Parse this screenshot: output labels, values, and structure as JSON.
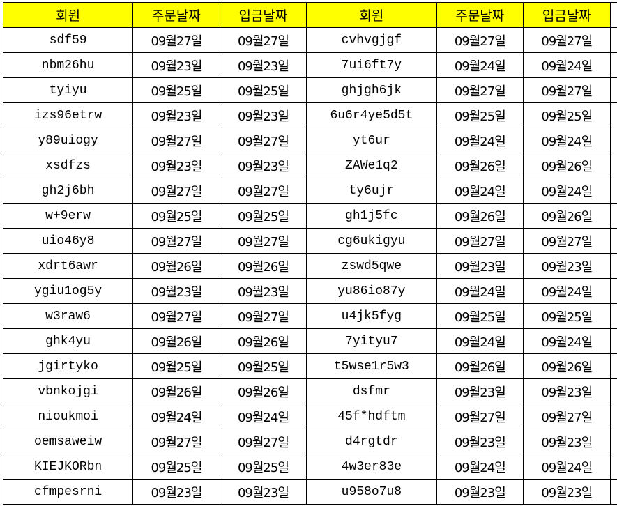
{
  "colors": {
    "header_bg": "#ffff00",
    "grid": "#000000"
  },
  "headers": [
    "회원",
    "주문날짜",
    "입금날짜",
    "회원",
    "주문날짜",
    "입금날짜"
  ],
  "rows": [
    [
      "sdf59",
      "09월27일",
      "09월27일",
      "cvhvgjgf",
      "09월27일",
      "09월27일"
    ],
    [
      "nbm26hu",
      "09월23일",
      "09월23일",
      "7ui6ft7y",
      "09월24일",
      "09월24일"
    ],
    [
      "tyiyu",
      "09월25일",
      "09월25일",
      "ghjgh6jk",
      "09월27일",
      "09월27일"
    ],
    [
      "izs96etrw",
      "09월23일",
      "09월23일",
      "6u6r4ye5d5t",
      "09월25일",
      "09월25일"
    ],
    [
      "y89uiogy",
      "09월27일",
      "09월27일",
      "yt6ur",
      "09월24일",
      "09월24일"
    ],
    [
      "xsdfzs",
      "09월23일",
      "09월23일",
      "ZAWe1q2",
      "09월26일",
      "09월26일"
    ],
    [
      "gh2j6bh",
      "09월27일",
      "09월27일",
      "ty6ujr",
      "09월24일",
      "09월24일"
    ],
    [
      "w+9erw",
      "09월25일",
      "09월25일",
      "gh1j5fc",
      "09월26일",
      "09월26일"
    ],
    [
      "uio46y8",
      "09월27일",
      "09월27일",
      "cg6ukigyu",
      "09월27일",
      "09월27일"
    ],
    [
      "xdrt6awr",
      "09월26일",
      "09월26일",
      "zswd5qwe",
      "09월23일",
      "09월23일"
    ],
    [
      "ygiu1og5y",
      "09월23일",
      "09월23일",
      "yu86io87y",
      "09월24일",
      "09월24일"
    ],
    [
      "w3raw6",
      "09월27일",
      "09월27일",
      "u4jk5fyg",
      "09월25일",
      "09월25일"
    ],
    [
      "ghk4yu",
      "09월26일",
      "09월26일",
      "7yityu7",
      "09월24일",
      "09월24일"
    ],
    [
      "jgirtyko",
      "09월25일",
      "09월25일",
      "t5wse1r5w3",
      "09월26일",
      "09월26일"
    ],
    [
      "vbnkojgi",
      "09월26일",
      "09월26일",
      "dsfmr",
      "09월23일",
      "09월23일"
    ],
    [
      "nioukmoi",
      "09월24일",
      "09월24일",
      "45f*hdftm",
      "09월27일",
      "09월27일"
    ],
    [
      "oemsaweiw",
      "09월27일",
      "09월27일",
      "d4rgtdr",
      "09월23일",
      "09월23일"
    ],
    [
      "KIEJKORbn",
      "09월25일",
      "09월25일",
      "4w3er83e",
      "09월24일",
      "09월24일"
    ],
    [
      "cfmpesrni",
      "09월23일",
      "09월23일",
      "u958o7u8",
      "09월23일",
      "09월23일"
    ]
  ]
}
